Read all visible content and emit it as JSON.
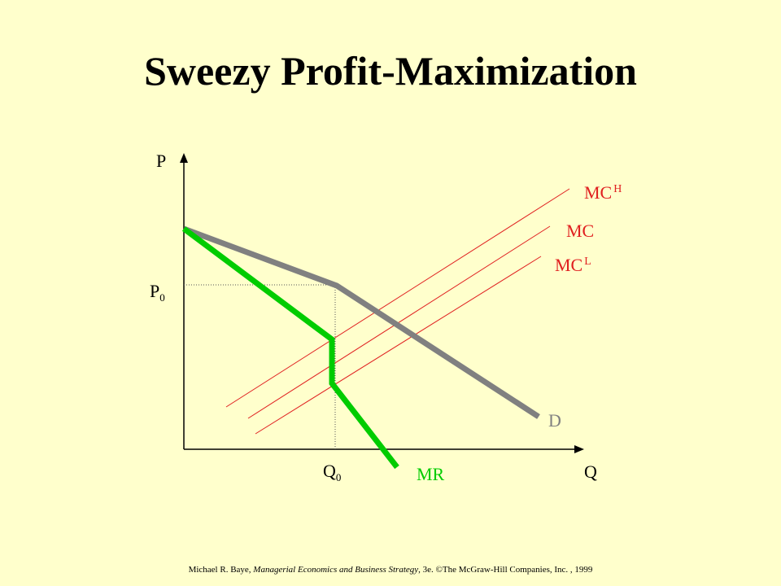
{
  "title": "Sweezy Profit-Maximization",
  "axes": {
    "y_label": "P",
    "x_label": "Q"
  },
  "markers": {
    "p0": {
      "base": "P",
      "sub": "0"
    },
    "q0": {
      "base": "Q",
      "sub": "0"
    }
  },
  "curves": {
    "mc_high": {
      "base": "MC",
      "sup": "H"
    },
    "mc": {
      "base": "MC"
    },
    "mc_low": {
      "base": "MC",
      "sup": "L"
    },
    "demand": {
      "label": "D"
    },
    "marginal_revenue": {
      "label": "MR"
    }
  },
  "colors": {
    "background": "#FFFFCC",
    "mc_lines": "#E02020",
    "mc_labels": "#E02020",
    "demand": "#808080",
    "marginal_revenue": "#00CC00",
    "axes": "#000000"
  },
  "footer": {
    "author": "Michael R. Baye,",
    "book": "Managerial Economics and Business Strategy",
    "rest": ", 3e. ©The McGraw-Hill Companies, Inc. , 1999"
  }
}
